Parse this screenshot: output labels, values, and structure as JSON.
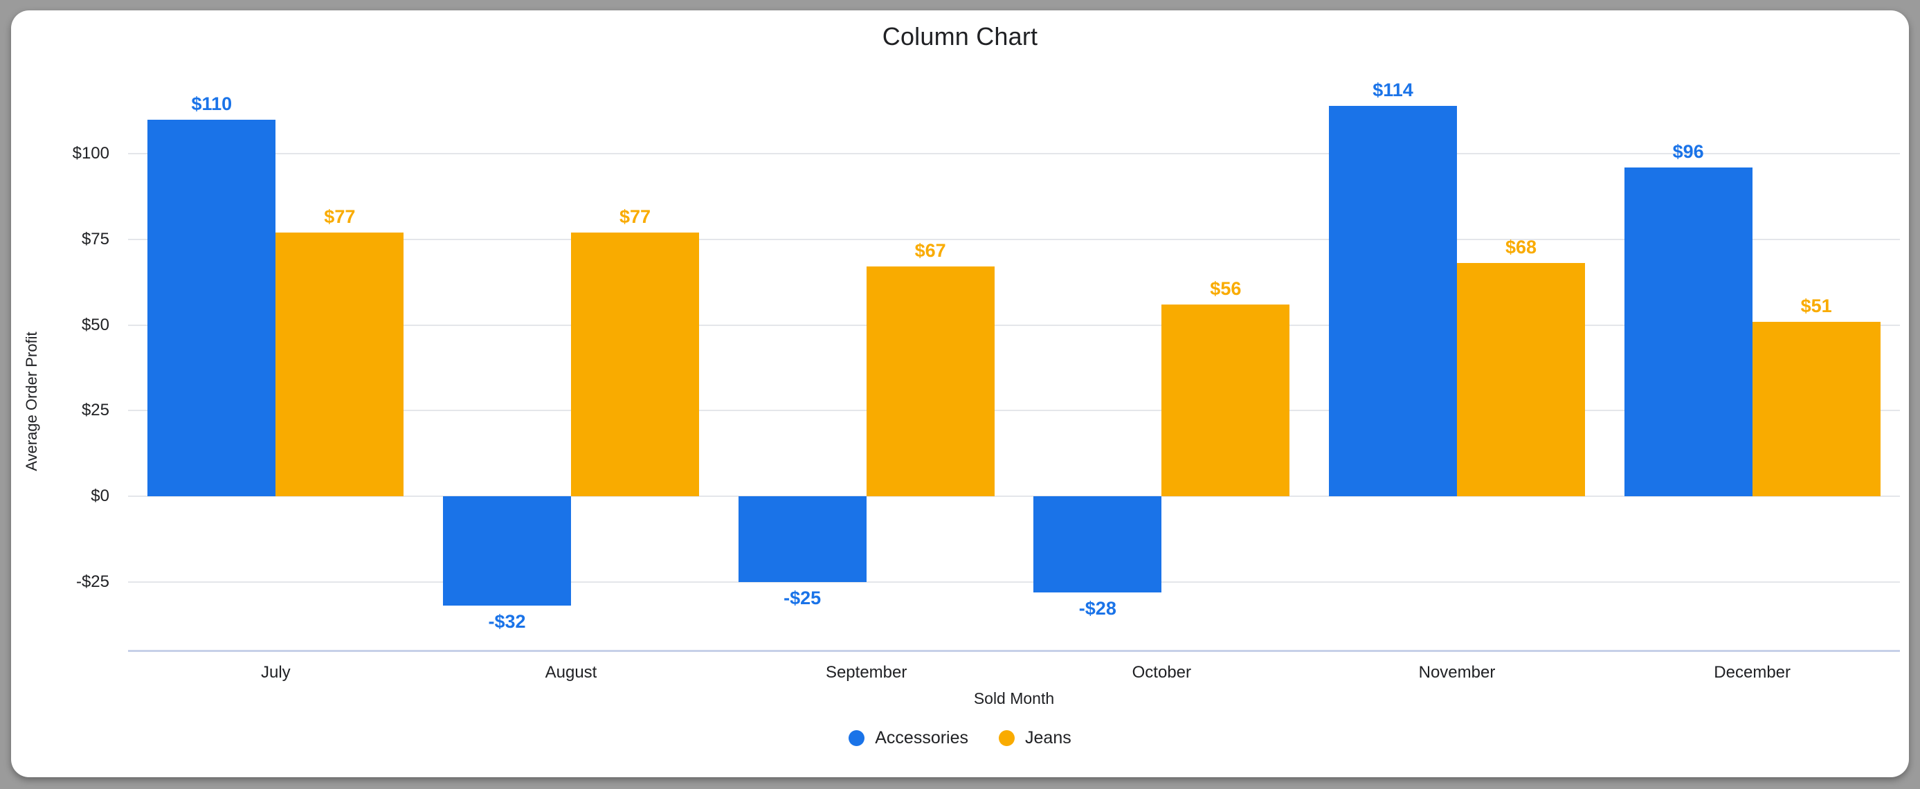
{
  "page": {
    "background_color": "#9b9b9b",
    "card_color": "#ffffff"
  },
  "chart_data": {
    "type": "bar",
    "title": "Column Chart",
    "xlabel": "Sold Month",
    "ylabel": "Average Order Profit",
    "categories": [
      "July",
      "August",
      "September",
      "October",
      "November",
      "December"
    ],
    "series": [
      {
        "name": "Accessories",
        "color": "#1a73e8",
        "values": [
          110,
          -32,
          -25,
          -28,
          114,
          96
        ],
        "labels": [
          "$110",
          "-$32",
          "-$25",
          "-$28",
          "$114",
          "$96"
        ]
      },
      {
        "name": "Jeans",
        "color": "#f9ab00",
        "values": [
          77,
          77,
          67,
          56,
          68,
          51
        ],
        "labels": [
          "$77",
          "$77",
          "$67",
          "$56",
          "$68",
          "$51"
        ]
      }
    ],
    "y_ticks": [
      {
        "label": "$100",
        "value": 100
      },
      {
        "label": "$75",
        "value": 75
      },
      {
        "label": "$50",
        "value": 50
      },
      {
        "label": "$25",
        "value": 25
      },
      {
        "label": "$0",
        "value": 0
      },
      {
        "label": "-$25",
        "value": -25
      }
    ],
    "ylim": [
      -45,
      121
    ],
    "grid": true,
    "legend_position": "bottom",
    "colors": {
      "gridline": "#e4e6ea",
      "axis_line": "#c6d0e8",
      "text": "#202124"
    }
  }
}
